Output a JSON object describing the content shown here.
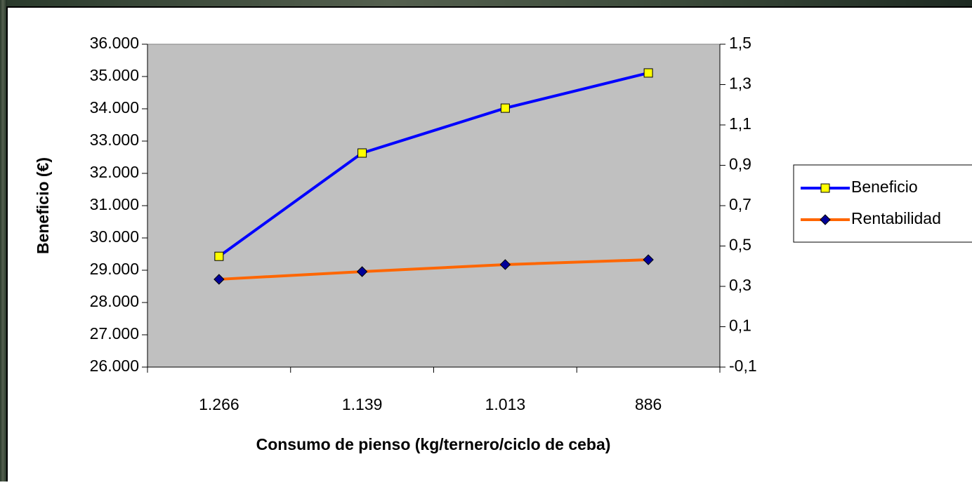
{
  "chart_data": {
    "type": "line",
    "categories": [
      "1.266",
      "1.139",
      "1.013",
      "886"
    ],
    "x_label": "Consumo de pienso (kg/ternero/ciclo de ceba)",
    "y_label": "Beneficio (€)",
    "ylim": [
      26000,
      36000
    ],
    "yticks": [
      {
        "value": 26000,
        "label": "26.000"
      },
      {
        "value": 27000,
        "label": "27.000"
      },
      {
        "value": 28000,
        "label": "28.000"
      },
      {
        "value": 29000,
        "label": "29.000"
      },
      {
        "value": 30000,
        "label": "30.000"
      },
      {
        "value": 31000,
        "label": "31.000"
      },
      {
        "value": 32000,
        "label": "32.000"
      },
      {
        "value": 33000,
        "label": "33.000"
      },
      {
        "value": 34000,
        "label": "34.000"
      },
      {
        "value": 35000,
        "label": "35.000"
      },
      {
        "value": 36000,
        "label": "36.000"
      }
    ],
    "y2lim": [
      -0.1,
      1.5
    ],
    "y2ticks": [
      {
        "value": -0.1,
        "label": "-0,1"
      },
      {
        "value": 0.1,
        "label": "0,1"
      },
      {
        "value": 0.3,
        "label": "0,3"
      },
      {
        "value": 0.5,
        "label": "0,5"
      },
      {
        "value": 0.7,
        "label": "0,7"
      },
      {
        "value": 0.9,
        "label": "0,9"
      },
      {
        "value": 1.1,
        "label": "1,1"
      },
      {
        "value": 1.3,
        "label": "1,3"
      },
      {
        "value": 1.5,
        "label": "1,5"
      }
    ],
    "plot_background": "#c0c0c0",
    "legend": "right",
    "series": [
      {
        "name": "Beneficio",
        "color": "#0000ff",
        "marker": "square",
        "marker_color": "#ffff00",
        "values": [
          29430,
          32630,
          34020,
          35110
        ]
      },
      {
        "name": "Rentabilidad",
        "color": "#ff6600",
        "marker": "diamond",
        "marker_color": "#000099",
        "axis": "y2",
        "values": [
          0.335,
          0.373,
          0.408,
          0.432
        ]
      }
    ]
  }
}
